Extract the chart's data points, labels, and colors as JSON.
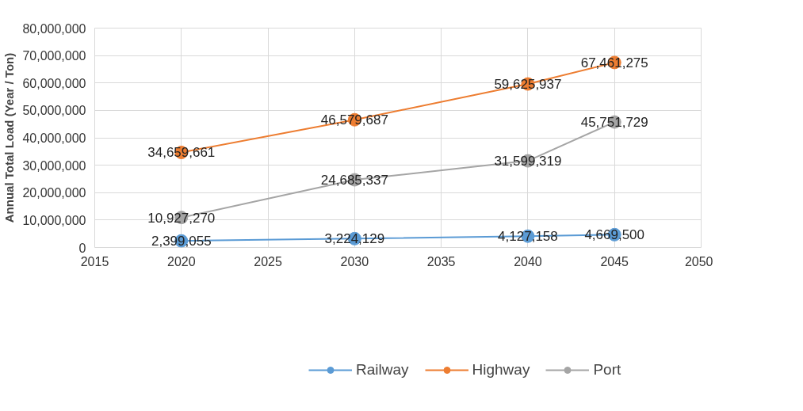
{
  "chart_data": {
    "type": "line",
    "ylabel": "Annual Total Load (Year / Ton)",
    "x": [
      2020,
      2030,
      2040,
      2045
    ],
    "series": [
      {
        "name": "Railway",
        "color": "#5b9bd5",
        "values": [
          2399055,
          3224129,
          4127158,
          4669500
        ],
        "value_labels": [
          "2,399,055",
          "3,224,129",
          "4,127,158",
          "4,669,500"
        ]
      },
      {
        "name": "Highway",
        "color": "#ed7d31",
        "values": [
          34659661,
          46579687,
          59625937,
          67461275
        ],
        "value_labels": [
          "34,659,661",
          "46,579,687",
          "59,625,937",
          "67,461,275"
        ]
      },
      {
        "name": "Port",
        "color": "#a5a5a5",
        "values": [
          10927270,
          24685337,
          31599319,
          45751729
        ],
        "value_labels": [
          "10,927,270",
          "24,685,337",
          "31,599,319",
          "45,751,729"
        ]
      }
    ],
    "xlim": [
      2015,
      2050
    ],
    "xticks": [
      2015,
      2020,
      2025,
      2030,
      2035,
      2040,
      2045,
      2050
    ],
    "ylim": [
      0,
      80000000
    ],
    "yticks": [
      0,
      {
        "value": 10000000,
        "label": "10,000,000"
      },
      {
        "value": 20000000,
        "label": "20,000,000"
      },
      {
        "value": 30000000,
        "label": "30,000,000"
      },
      {
        "value": 40000000,
        "label": "40,000,000"
      },
      {
        "value": 50000000,
        "label": "50,000,000"
      },
      {
        "value": 60000000,
        "label": "60,000,000"
      },
      {
        "value": 70000000,
        "label": "70,000,000"
      },
      {
        "value": 80000000,
        "label": "80,000,000"
      }
    ],
    "grid": true,
    "legend": "bottom",
    "marker": "circle",
    "line_style": "solid"
  }
}
